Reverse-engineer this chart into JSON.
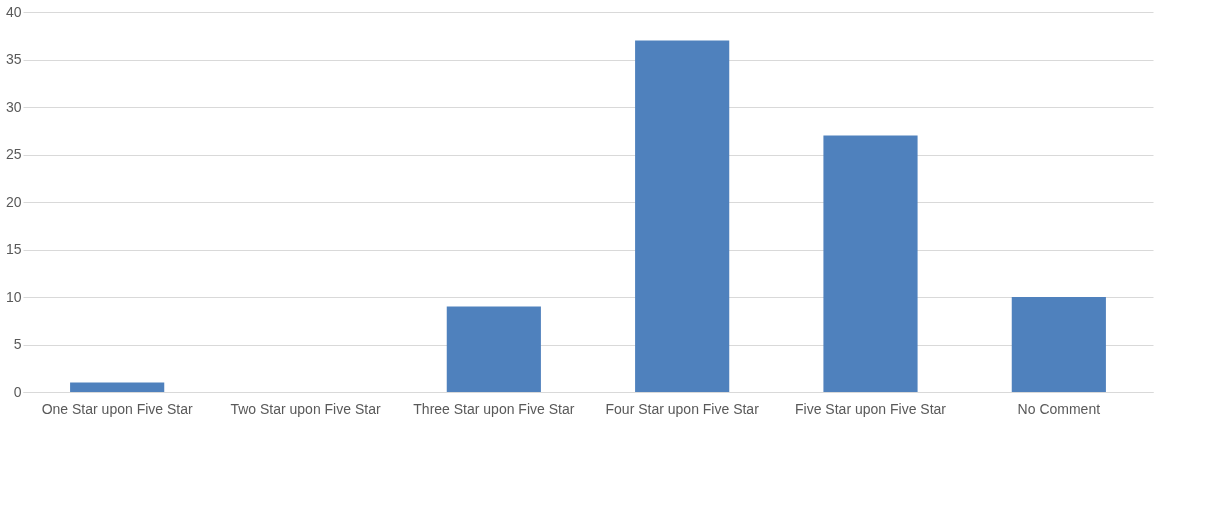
{
  "chart_data": {
    "type": "bar",
    "categories": [
      "One Star upon Five Star",
      "Two Star upon Five Star",
      "Three Star upon Five Star",
      "Four Star upon Five Star",
      "Five Star upon Five Star",
      "No Comment"
    ],
    "values": [
      1,
      0,
      9,
      37,
      27,
      10
    ],
    "color": "#4f81bd",
    "ylim": [
      0,
      40
    ],
    "yticks": [
      0,
      5,
      10,
      15,
      20,
      25,
      30,
      35,
      40
    ],
    "grid": "y"
  }
}
